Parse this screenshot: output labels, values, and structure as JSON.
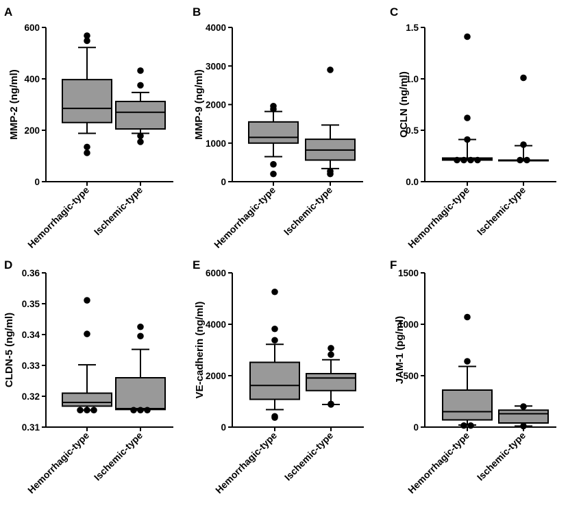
{
  "chart_data": [
    {
      "type": "box",
      "panel": "A",
      "ylabel": "MMP-2 (ng/ml)",
      "ylim": [
        0,
        600
      ],
      "yticks": [
        0,
        200,
        400,
        600
      ],
      "ytick_labels": [
        "0",
        "200",
        "400",
        "600"
      ],
      "categories": [
        "Hemorrhagic-type",
        "Ischemic-type"
      ],
      "boxes": [
        {
          "category": "Hemorrhagic-type",
          "q1": 230,
          "median": 285,
          "q3": 397,
          "whisker_low": 188,
          "whisker_high": 522,
          "outliers": [
            112,
            135,
            548,
            568
          ]
        },
        {
          "category": "Ischemic-type",
          "q1": 205,
          "median": 270,
          "q3": 312,
          "whisker_low": 188,
          "whisker_high": 347,
          "outliers": [
            155,
            178,
            375,
            432
          ]
        }
      ]
    },
    {
      "type": "box",
      "panel": "B",
      "ylabel": "MMP-9 (ng/ml)",
      "ylim": [
        0,
        4000
      ],
      "yticks": [
        0,
        1000,
        2000,
        3000,
        4000
      ],
      "ytick_labels": [
        "0",
        "1000",
        "2000",
        "3000",
        "4000"
      ],
      "categories": [
        "Hemorrhagic-type",
        "Ischemic-type"
      ],
      "boxes": [
        {
          "category": "Hemorrhagic-type",
          "q1": 1000,
          "median": 1150,
          "q3": 1550,
          "whisker_low": 650,
          "whisker_high": 1820,
          "outliers": [
            200,
            450,
            1880,
            1960
          ]
        },
        {
          "category": "Ischemic-type",
          "q1": 560,
          "median": 820,
          "q3": 1100,
          "whisker_low": 340,
          "whisker_high": 1470,
          "outliers": [
            200,
            270,
            2900
          ]
        }
      ]
    },
    {
      "type": "box",
      "panel": "C",
      "ylabel": "OCLN (ng/ml)",
      "ylim": [
        0,
        1.5
      ],
      "yticks": [
        0,
        0.5,
        1.0,
        1.5
      ],
      "ytick_labels": [
        "0.0",
        "0.5",
        "1.0",
        "1.5"
      ],
      "categories": [
        "Hemorrhagic-type",
        "Ischemic-type"
      ],
      "boxes": [
        {
          "category": "Hemorrhagic-type",
          "q1": 0.21,
          "median": 0.22,
          "q3": 0.23,
          "whisker_low": 0.21,
          "whisker_high": 0.41,
          "outliers": [
            0.21,
            0.21,
            0.21,
            0.21,
            0.41,
            0.62,
            1.41
          ]
        },
        {
          "category": "Ischemic-type",
          "q1": 0.21,
          "median": 0.21,
          "q3": 0.21,
          "whisker_low": 0.21,
          "whisker_high": 0.35,
          "outliers": [
            0.21,
            0.21,
            0.36,
            1.01
          ]
        }
      ]
    },
    {
      "type": "box",
      "panel": "D",
      "ylabel": "CLDN-5 (ng/ml)",
      "ylim": [
        0.31,
        0.36
      ],
      "yticks": [
        0.31,
        0.32,
        0.33,
        0.34,
        0.35,
        0.36
      ],
      "ytick_labels": [
        "0.31",
        "0.32",
        "0.33",
        "0.34",
        "0.35",
        "0.36"
      ],
      "categories": [
        "Hemorrhagic-type",
        "Ischemic-type"
      ],
      "boxes": [
        {
          "category": "Hemorrhagic-type",
          "q1": 0.3168,
          "median": 0.318,
          "q3": 0.321,
          "whisker_low": 0.3155,
          "whisker_high": 0.3302,
          "outliers": [
            0.3155,
            0.3155,
            0.3155,
            0.3402,
            0.3511
          ]
        },
        {
          "category": "Ischemic-type",
          "q1": 0.3157,
          "median": 0.316,
          "q3": 0.326,
          "whisker_low": 0.3155,
          "whisker_high": 0.3352,
          "outliers": [
            0.3155,
            0.3155,
            0.3155,
            0.3395,
            0.3425
          ]
        }
      ]
    },
    {
      "type": "box",
      "panel": "E",
      "ylabel": "VE-cadherin (ng/ml)",
      "ylim": [
        0,
        6000
      ],
      "yticks": [
        0,
        2000,
        4000,
        6000
      ],
      "ytick_labels": [
        "0",
        "2000",
        "4000",
        "6000"
      ],
      "categories": [
        "Hemorrhagic-type",
        "Ischemic-type"
      ],
      "boxes": [
        {
          "category": "Hemorrhagic-type",
          "q1": 1080,
          "median": 1620,
          "q3": 2520,
          "whisker_low": 680,
          "whisker_high": 3220,
          "outliers": [
            370,
            420,
            3380,
            3820,
            5260
          ]
        },
        {
          "category": "Ischemic-type",
          "q1": 1420,
          "median": 1910,
          "q3": 2080,
          "whisker_low": 880,
          "whisker_high": 2620,
          "outliers": [
            880,
            900,
            2820,
            3070
          ]
        }
      ]
    },
    {
      "type": "box",
      "panel": "F",
      "ylabel": "JAM-1 (pg/ml)",
      "ylim": [
        0,
        1500
      ],
      "yticks": [
        0,
        500,
        1000,
        1500
      ],
      "ytick_labels": [
        "0",
        "500",
        "1000",
        "1500"
      ],
      "categories": [
        "Hemorrhagic-type",
        "Ischemic-type"
      ],
      "boxes": [
        {
          "category": "Hemorrhagic-type",
          "q1": 70,
          "median": 150,
          "q3": 360,
          "whisker_low": 20,
          "whisker_high": 590,
          "outliers": [
            15,
            15,
            640,
            1070
          ]
        },
        {
          "category": "Ischemic-type",
          "q1": 40,
          "median": 130,
          "q3": 165,
          "whisker_low": 10,
          "whisker_high": 205,
          "outliers": [
            10,
            200
          ]
        }
      ]
    }
  ]
}
